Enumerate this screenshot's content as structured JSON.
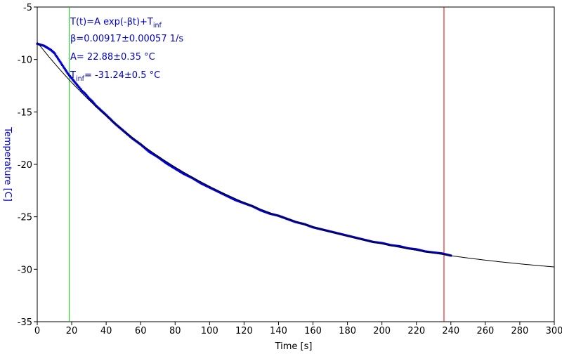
{
  "chart_data": {
    "type": "scatter",
    "title": "",
    "xlabel": "Time [s]",
    "ylabel": "Temperature [C]",
    "xlim": [
      0,
      300
    ],
    "ylim": [
      -35,
      -5
    ],
    "x_ticks": [
      0,
      20,
      40,
      60,
      80,
      100,
      120,
      140,
      160,
      180,
      200,
      220,
      240,
      260,
      280,
      300
    ],
    "y_ticks": [
      -5,
      -10,
      -15,
      -20,
      -25,
      -30,
      -35
    ],
    "x_tick_labels": [
      "0",
      "20",
      "40",
      "60",
      "80",
      "100",
      "120",
      "140",
      "160",
      "180",
      "200",
      "220",
      "240",
      "260",
      "280",
      "300"
    ],
    "y_tick_labels": [
      "-5",
      "-10",
      "-15",
      "-20",
      "-25",
      "-30",
      "-35"
    ],
    "grid": false,
    "fit": {
      "model": "T(t)=A exp(-βt)+T_inf",
      "beta": 0.00917,
      "beta_err": 0.00057,
      "A": 22.88,
      "A_err": 0.35,
      "T_inf": -31.24,
      "T_inf_err": 0.5,
      "x_range": [
        0,
        300
      ],
      "color": "#000000"
    },
    "series": [
      {
        "color": "#0000cc",
        "x": [
          0,
          2,
          4,
          6,
          8,
          10,
          12,
          14,
          16,
          18,
          20,
          22,
          24,
          26,
          28,
          30,
          32,
          34,
          36,
          38,
          40,
          45,
          50,
          55,
          60,
          65,
          70,
          75,
          80,
          85,
          90,
          95,
          100,
          105,
          110,
          115,
          120,
          125,
          130,
          135,
          140,
          145,
          150,
          155,
          160,
          165,
          170,
          175,
          180,
          185,
          190,
          195,
          200,
          205,
          210,
          215,
          220,
          225,
          230,
          235,
          240
        ],
        "y": [
          -8.5,
          -8.6,
          -8.7,
          -8.9,
          -9.1,
          -9.4,
          -9.9,
          -10.4,
          -10.9,
          -11.4,
          -11.8,
          -12.2,
          -12.6,
          -13.0,
          -13.3,
          -13.7,
          -14.0,
          -14.4,
          -14.7,
          -15.0,
          -15.3,
          -16.1,
          -16.8,
          -17.5,
          -18.1,
          -18.8,
          -19.3,
          -19.9,
          -20.4,
          -20.9,
          -21.3,
          -21.8,
          -22.2,
          -22.6,
          -23.0,
          -23.4,
          -23.7,
          -24.0,
          -24.4,
          -24.7,
          -24.9,
          -25.2,
          -25.5,
          -25.7,
          -26.0,
          -26.2,
          -26.4,
          -26.6,
          -26.8,
          -27.0,
          -27.2,
          -27.4,
          -27.5,
          -27.7,
          -27.8,
          -28.0,
          -28.1,
          -28.3,
          -28.4,
          -28.5,
          -28.7
        ]
      }
    ],
    "markers": [
      {
        "x": 18.5,
        "color": "#00cc00"
      },
      {
        "x": 236,
        "color": "#dd0000"
      }
    ],
    "annotation": {
      "color": "#0000cc",
      "line1_a": "T(t)=A exp(-βt)+T",
      "line1_sub": "inf",
      "line2": "β=0.00917±0.00057 1/s",
      "line3": "A= 22.88±0.35 °C",
      "line4_a": "T",
      "line4_sub": "inf",
      "line4_b": "= -31.24±0.5 °C"
    },
    "colors": {
      "axis": "#000000",
      "ylabel": "#0000cc"
    }
  }
}
